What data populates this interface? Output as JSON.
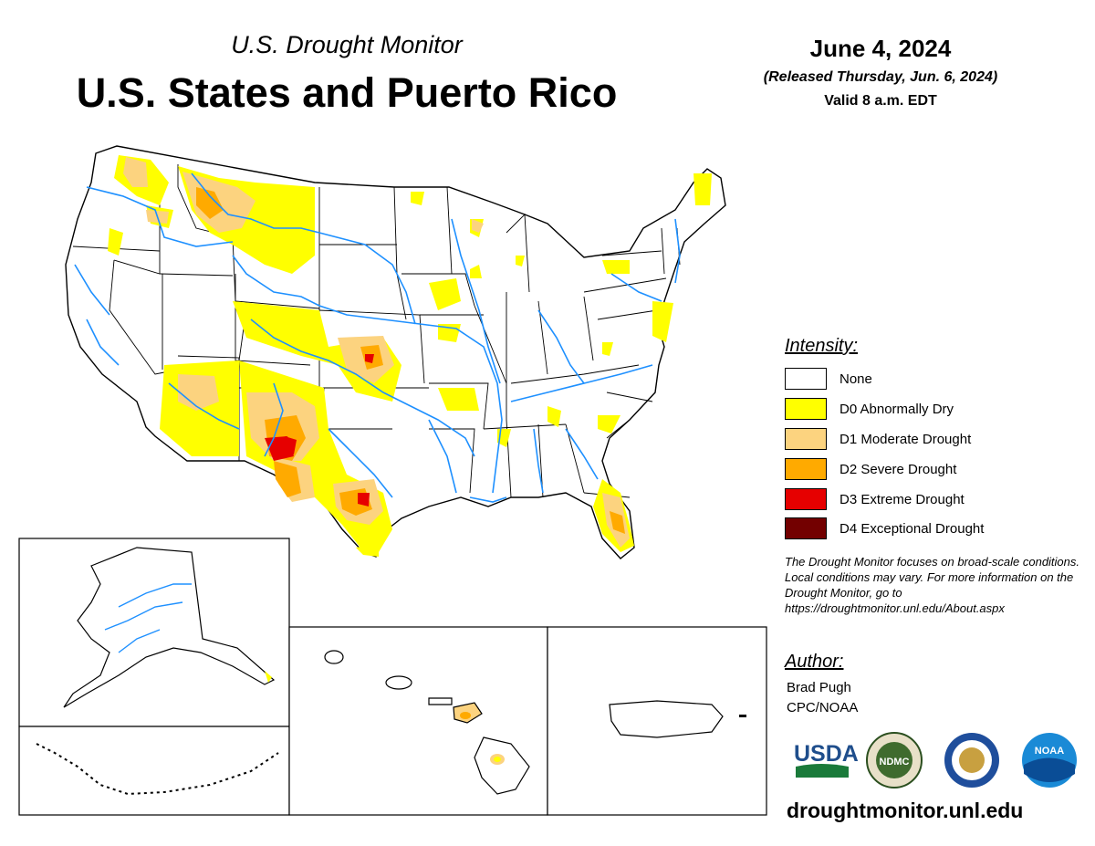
{
  "header": {
    "subtitle": "U.S. Drought Monitor",
    "title": "U.S. States and Puerto Rico",
    "date": "June 4, 2024",
    "released": "(Released Thursday, Jun. 6, 2024)",
    "valid": "Valid 8 a.m. EDT"
  },
  "legend": {
    "title": "Intensity:",
    "items": [
      {
        "label": "None",
        "color": "#ffffff"
      },
      {
        "label": "D0 Abnormally Dry",
        "color": "#ffff00"
      },
      {
        "label": "D1 Moderate Drought",
        "color": "#fcd37f"
      },
      {
        "label": "D2 Severe Drought",
        "color": "#ffaa00"
      },
      {
        "label": "D3 Extreme Drought",
        "color": "#e60000"
      },
      {
        "label": "D4 Exceptional Drought",
        "color": "#730000"
      }
    ]
  },
  "note": "The Drought Monitor focuses on broad-scale conditions. Local conditions may vary. For more information on the Drought Monitor, go to https://droughtmonitor.unl.edu/About.aspx",
  "author": {
    "title": "Author:",
    "name": "Brad Pugh",
    "org": "CPC/NOAA"
  },
  "logos": {
    "usda": "USDA",
    "ndmc": "NDMC",
    "noaa": "NOAA"
  },
  "footer": {
    "site": "droughtmonitor.unl.edu"
  },
  "colors": {
    "river": "#1e90ff",
    "d0": "#ffff00",
    "d1": "#fcd37f",
    "d2": "#ffaa00",
    "d3": "#e60000",
    "d4": "#730000"
  }
}
